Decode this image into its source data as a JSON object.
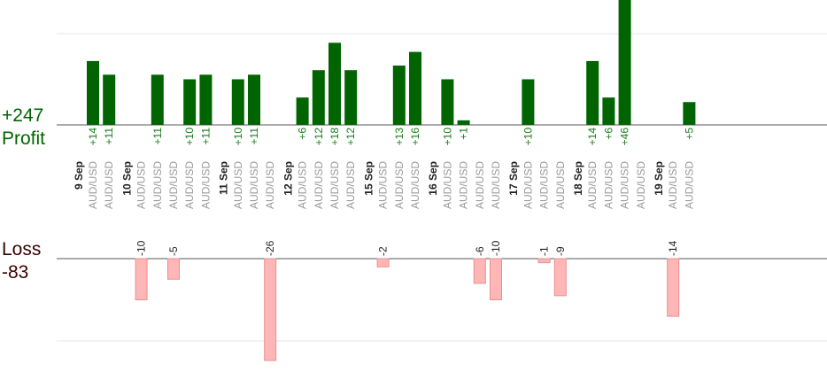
{
  "chart_data": {
    "type": "bar",
    "summary": {
      "profit_total": "+247",
      "profit_label": "Profit",
      "loss_label": "Loss",
      "loss_total": "-83"
    },
    "colors": {
      "profit_bar": "#006400",
      "loss_bar_fill": "#ffb6b6",
      "loss_bar_stroke": "#e89090",
      "axis": "#555555",
      "grid": "#e6e6e6"
    },
    "profit_ylim": [
      0,
      20
    ],
    "loss_ylim": [
      0,
      20
    ],
    "groups": [
      {
        "date": "9 Sep",
        "trades": [
          {
            "pair": "AUD/USD",
            "value": 14,
            "label": "+14"
          },
          {
            "pair": "AUD/USD",
            "value": 11,
            "label": "+11"
          }
        ]
      },
      {
        "date": "10 Sep",
        "trades": [
          {
            "pair": "AUD/USD",
            "value": -10,
            "label": "-10"
          },
          {
            "pair": "AUD/USD",
            "value": 11,
            "label": "+11"
          },
          {
            "pair": "AUD/USD",
            "value": -5,
            "label": "-5"
          },
          {
            "pair": "AUD/USD",
            "value": 10,
            "label": "+10"
          },
          {
            "pair": "AUD/USD",
            "value": 11,
            "label": "+11"
          }
        ]
      },
      {
        "date": "11 Sep",
        "trades": [
          {
            "pair": "AUD/USD",
            "value": 10,
            "label": "+10"
          },
          {
            "pair": "AUD/USD",
            "value": 11,
            "label": "+11"
          },
          {
            "pair": "AUD/USD",
            "value": -26,
            "label": "-26"
          }
        ]
      },
      {
        "date": "12 Sep",
        "trades": [
          {
            "pair": "AUD/USD",
            "value": 6,
            "label": "+6"
          },
          {
            "pair": "AUD/USD",
            "value": 12,
            "label": "+12"
          },
          {
            "pair": "AUD/USD",
            "value": 18,
            "label": "+18"
          },
          {
            "pair": "AUD/USD",
            "value": 12,
            "label": "+12"
          }
        ]
      },
      {
        "date": "15 Sep",
        "trades": [
          {
            "pair": "AUD/USD",
            "value": -2,
            "label": "-2"
          },
          {
            "pair": "AUD/USD",
            "value": 13,
            "label": "+13"
          },
          {
            "pair": "AUD/USD",
            "value": 16,
            "label": "+16"
          }
        ]
      },
      {
        "date": "16 Sep",
        "trades": [
          {
            "pair": "AUD/USD",
            "value": 10,
            "label": "+10"
          },
          {
            "pair": "AUD/USD",
            "value": 1,
            "label": "+1"
          },
          {
            "pair": "AUD/USD",
            "value": -6,
            "label": "-6"
          },
          {
            "pair": "AUD/USD",
            "value": -10,
            "label": "-10"
          }
        ]
      },
      {
        "date": "17 Sep",
        "trades": [
          {
            "pair": "AUD/USD",
            "value": 10,
            "label": "+10"
          },
          {
            "pair": "AUD/USD",
            "value": -1,
            "label": "-1"
          },
          {
            "pair": "AUD/USD",
            "value": -9,
            "label": "-9"
          }
        ]
      },
      {
        "date": "18 Sep",
        "trades": [
          {
            "pair": "AUD/USD",
            "value": 14,
            "label": "+14"
          },
          {
            "pair": "AUD/USD",
            "value": 6,
            "label": "+6"
          },
          {
            "pair": "AUD/USD",
            "value": 46,
            "label": "+46"
          },
          {
            "pair": "AUD/USD",
            "value": null,
            "label": ""
          }
        ]
      },
      {
        "date": "19 Sep",
        "trades": [
          {
            "pair": "AUD/USD",
            "value": -14,
            "label": "-14"
          },
          {
            "pair": "AUD/USD",
            "value": 5,
            "label": "+5"
          }
        ]
      }
    ]
  }
}
